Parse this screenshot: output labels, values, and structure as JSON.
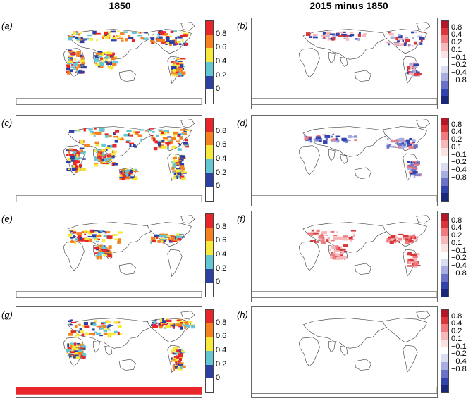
{
  "titles": {
    "left": "1850",
    "right": "2015 minus 1850"
  },
  "panels": [
    {
      "label": "(a)",
      "kind": "abs",
      "variant": "a"
    },
    {
      "label": "(b)",
      "kind": "diff",
      "variant": "b"
    },
    {
      "label": "(c)",
      "kind": "abs",
      "variant": "c"
    },
    {
      "label": "(d)",
      "kind": "diff",
      "variant": "d"
    },
    {
      "label": "(e)",
      "kind": "abs",
      "variant": "e"
    },
    {
      "label": "(f)",
      "kind": "diff",
      "variant": "f"
    },
    {
      "label": "(g)",
      "kind": "abs",
      "variant": "g"
    },
    {
      "label": "(h)",
      "kind": "diff",
      "variant": "h"
    }
  ],
  "colorbar_abs": {
    "ticks": [
      "0.8",
      "0.6",
      "0.4",
      "0.2",
      "0"
    ],
    "colors": [
      "#e8262a",
      "#f5821f",
      "#f7e93c",
      "#63c7d3",
      "#2d3fa3",
      "#ffffff"
    ]
  },
  "colorbar_diff": {
    "ticks": [
      "0.8",
      "0.4",
      "0.2",
      "0.1",
      "−0.1",
      "−0.2",
      "−0.4",
      "−0.8"
    ],
    "colors": [
      "#b2182b",
      "#d6383c",
      "#ef7b7f",
      "#f6b8bb",
      "#fbe2e3",
      "#ffffff",
      "#dadcf2",
      "#a8ade0",
      "#6a72c8",
      "#3243ac",
      "#1a2779"
    ]
  }
}
